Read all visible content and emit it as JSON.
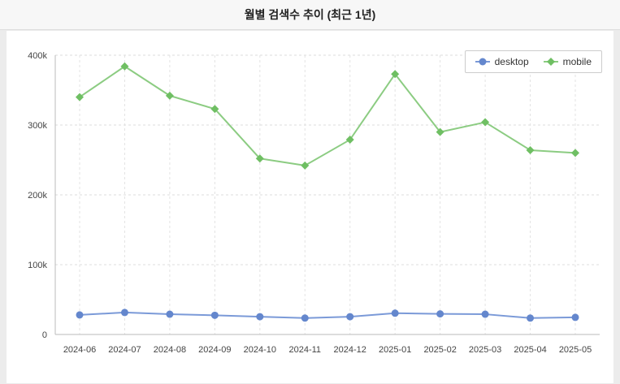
{
  "header": {
    "title": "월별 검색수 추이 (최근 1년)"
  },
  "chart_data": {
    "type": "line",
    "title": "월별 검색수 추이 (최근 1년)",
    "xlabel": "",
    "ylabel": "",
    "ylim": [
      0,
      400000
    ],
    "ytick_step": 100000,
    "ytick_labels": [
      "0",
      "100k",
      "200k",
      "300k",
      "400k"
    ],
    "grid": "dashed",
    "legend_position": "top-right",
    "categories": [
      "2024-06",
      "2024-07",
      "2024-08",
      "2024-09",
      "2024-10",
      "2024-11",
      "2024-12",
      "2025-01",
      "2025-02",
      "2025-03",
      "2025-04",
      "2025-05"
    ],
    "series": [
      {
        "name": "desktop",
        "color": "#6487cd",
        "line_color": "#7b9ad8",
        "marker": "circle",
        "values": [
          28000,
          31500,
          29000,
          27500,
          25500,
          23500,
          25500,
          30500,
          29500,
          29000,
          23500,
          24500
        ]
      },
      {
        "name": "mobile",
        "color": "#6fbf63",
        "line_color": "#8ccc82",
        "marker": "diamond",
        "values": [
          340000,
          384000,
          342000,
          323000,
          252000,
          242000,
          279000,
          373000,
          290000,
          304000,
          264000,
          260000
        ]
      }
    ]
  }
}
